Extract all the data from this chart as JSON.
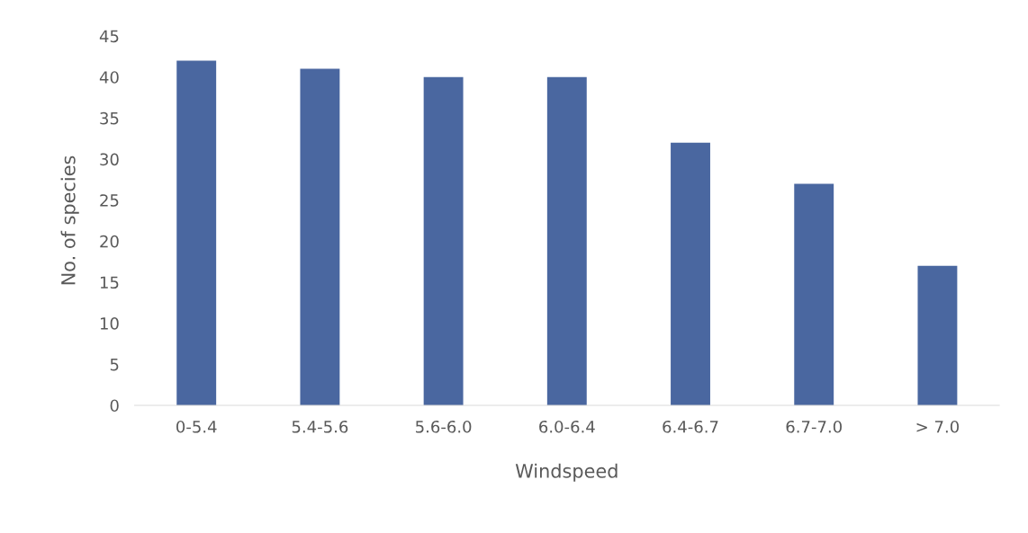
{
  "chart_data": {
    "type": "bar",
    "xlabel": "Windspeed",
    "ylabel": "No. of species",
    "categories": [
      "0-5.4",
      "5.4-5.6",
      "5.6-6.0",
      "6.0-6.4",
      "6.4-6.7",
      "6.7-7.0",
      "> 7.0"
    ],
    "values": [
      42,
      41,
      40,
      40,
      32,
      27,
      17
    ],
    "color": "#4a67a0",
    "ylim": [
      0,
      45
    ],
    "yticks": [
      0,
      5,
      10,
      15,
      20,
      25,
      30,
      35,
      40,
      45
    ],
    "grid": false,
    "legend": false
  }
}
